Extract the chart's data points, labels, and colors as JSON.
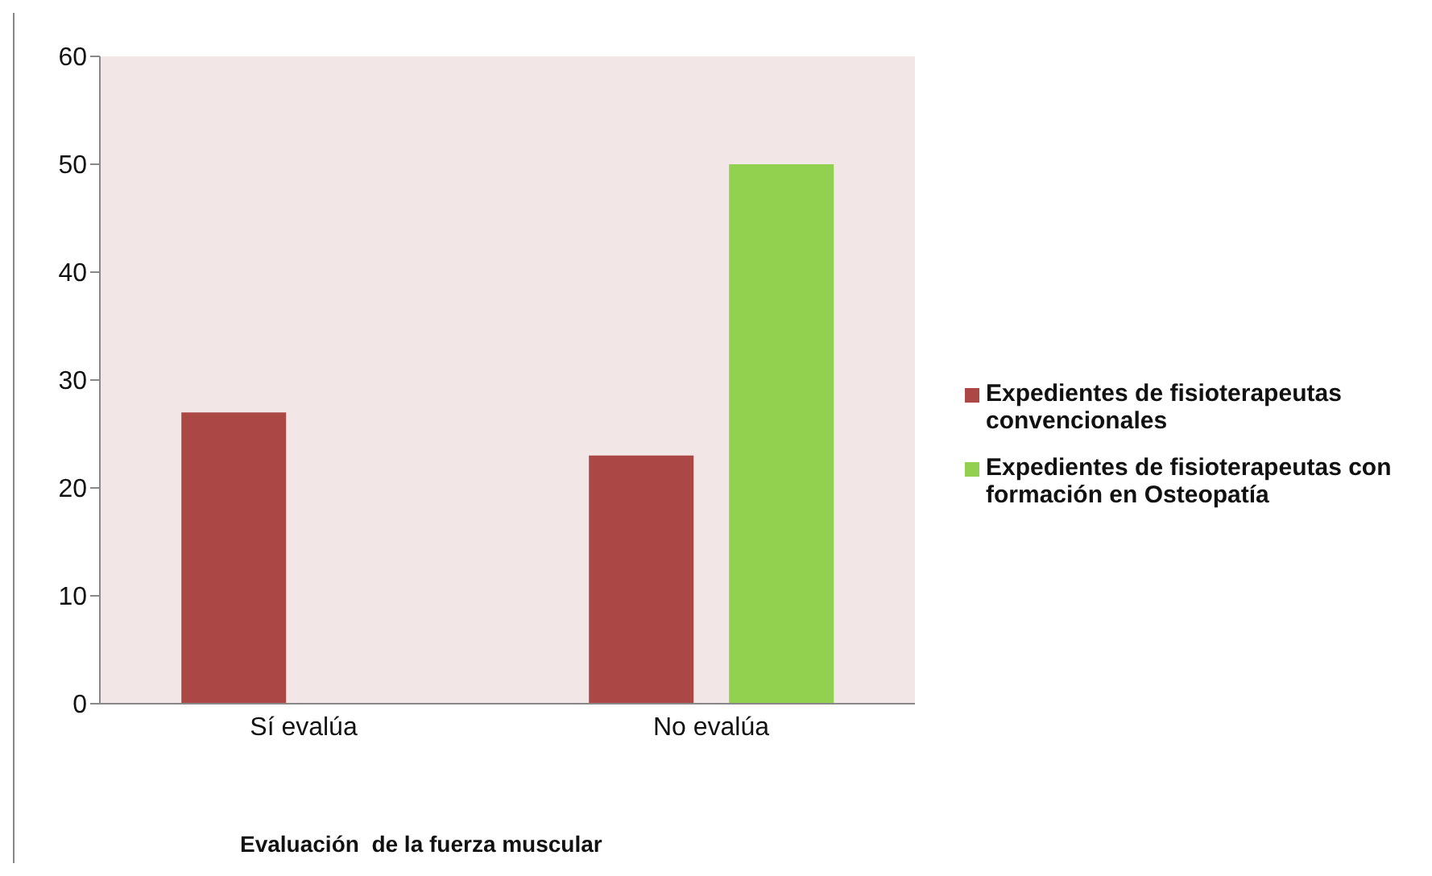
{
  "chart_data": {
    "type": "bar",
    "xlabel": "Evaluación  de la fuerza muscular",
    "categories": [
      "Sí evalúa",
      "No evalúa"
    ],
    "series": [
      {
        "name": "Expedientes de fisioterapeutas convencionales",
        "color": "#ab4745",
        "values": [
          27,
          23
        ]
      },
      {
        "name": "Expedientes de fisioterapeutas con formación en Osteopatía",
        "color": "#92d050",
        "values": [
          null,
          50
        ]
      }
    ],
    "ylim": [
      0,
      60
    ],
    "yticks": [
      0,
      10,
      20,
      30,
      40,
      50,
      60
    ],
    "grid": false,
    "legend": "right"
  }
}
